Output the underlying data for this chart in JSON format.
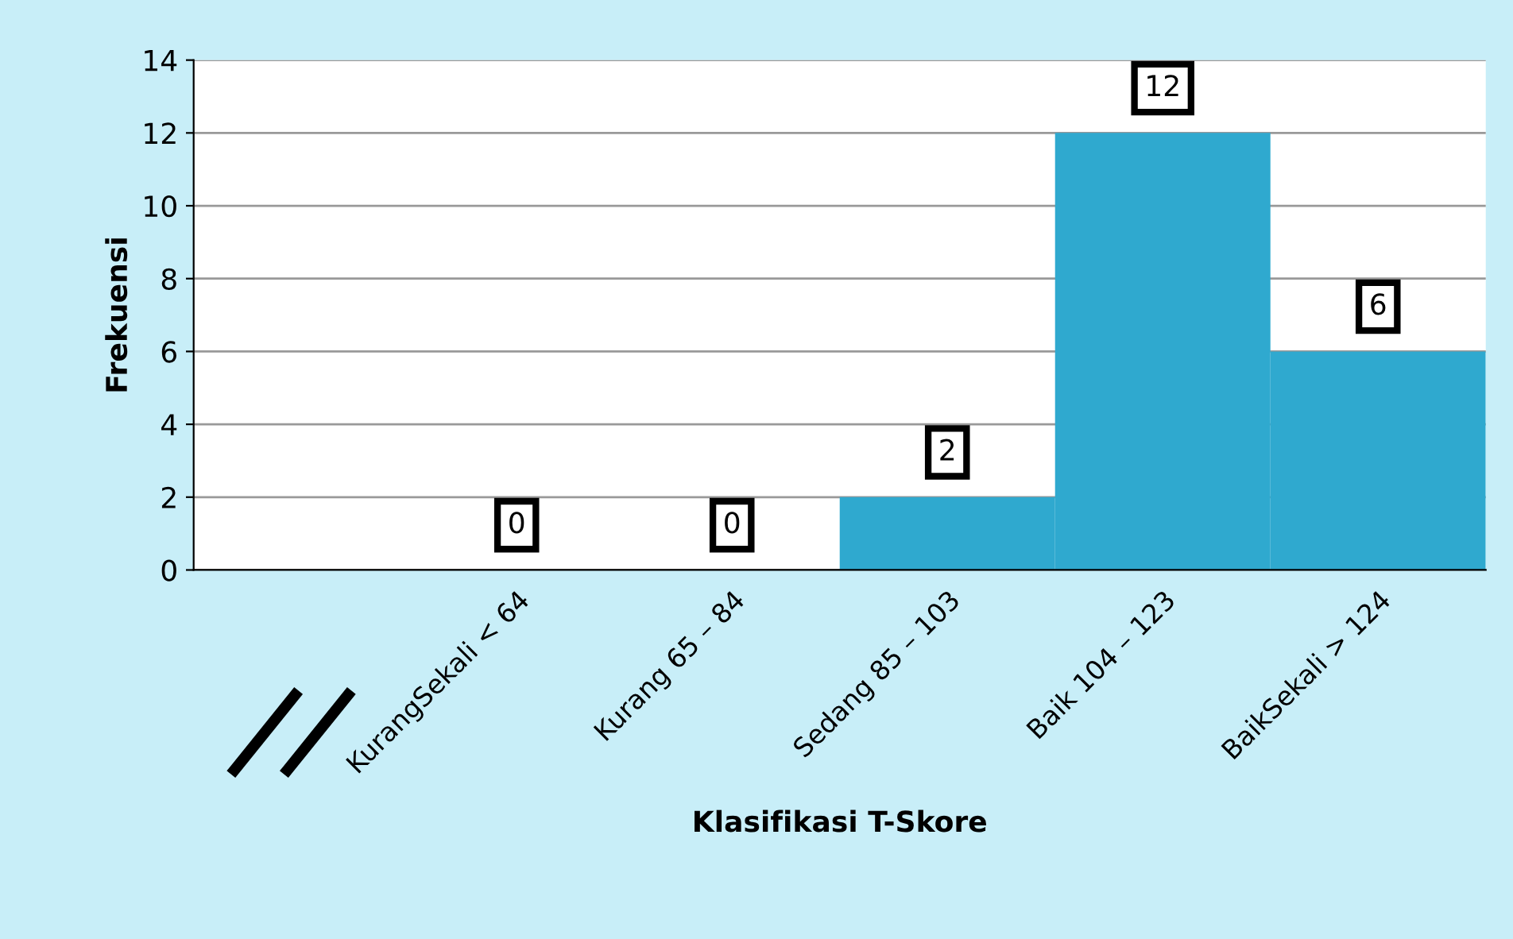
{
  "chart_data": {
    "type": "bar",
    "xlabel": "Klasifikasi T-Skore",
    "ylabel": "Frekuensi",
    "categories": [
      null,
      "KurangSekali < 64",
      "Kurang 65 – 84",
      "Sedang 85 – 103",
      "Baik 104 – 123",
      "BaikSekali > 124"
    ],
    "values": [
      null,
      0,
      0,
      2,
      12,
      6
    ],
    "value_labels": [
      null,
      "0",
      "0",
      "2",
      "12",
      "6"
    ],
    "color": "#2fa9cf",
    "ylim": [
      0,
      14
    ],
    "yticks": [
      0,
      2,
      4,
      6,
      8,
      10,
      12,
      14
    ],
    "grid": "y",
    "legend": false
  }
}
